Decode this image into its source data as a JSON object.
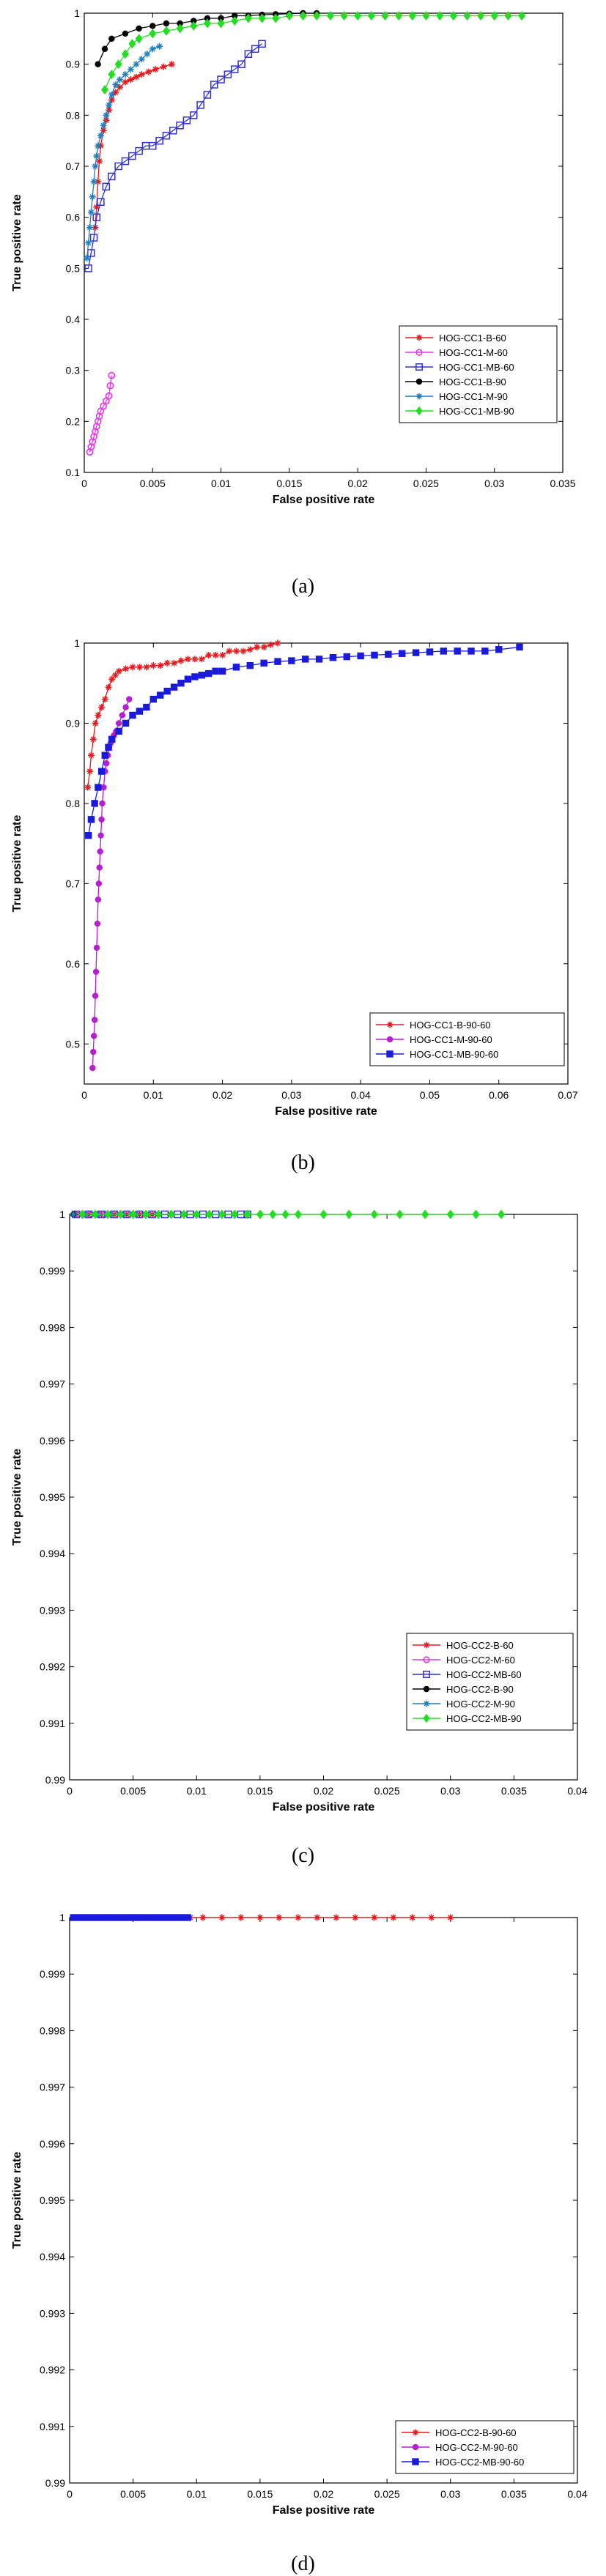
{
  "chart_data": [
    {
      "type": "line",
      "caption": "(a)",
      "xlabel": "False positive rate",
      "ylabel": "True positive rate",
      "xlim": [
        0,
        0.035
      ],
      "ylim": [
        0.1,
        1
      ],
      "xticks": [
        "0",
        "0.005",
        "0.01",
        "0.015",
        "0.02",
        "0.025",
        "0.03",
        "0.035"
      ],
      "yticks": [
        "0.1",
        "0.2",
        "0.3",
        "0.4",
        "0.5",
        "0.6",
        "0.7",
        "0.8",
        "0.9",
        "1"
      ],
      "legend_position": "lower-right",
      "series": [
        {
          "name": "HOG-CC1-B-60",
          "color": "#e8191c",
          "marker": "star",
          "x": [
            0.0008,
            0.0009,
            0.001,
            0.0011,
            0.0012,
            0.0014,
            0.0016,
            0.0018,
            0.002,
            0.0023,
            0.0026,
            0.003,
            0.0034,
            0.0038,
            0.0042,
            0.0047,
            0.0052,
            0.0058,
            0.0064
          ],
          "y": [
            0.58,
            0.62,
            0.67,
            0.71,
            0.74,
            0.77,
            0.79,
            0.81,
            0.83,
            0.845,
            0.855,
            0.865,
            0.87,
            0.875,
            0.88,
            0.885,
            0.89,
            0.895,
            0.9
          ]
        },
        {
          "name": "HOG-CC1-M-60",
          "color": "#e633e6",
          "marker": "circle-open",
          "x": [
            0.0004,
            0.0005,
            0.0006,
            0.0007,
            0.0008,
            0.0009,
            0.001,
            0.0011,
            0.0012,
            0.0014,
            0.0016,
            0.0018,
            0.0019,
            0.002
          ],
          "y": [
            0.14,
            0.15,
            0.16,
            0.17,
            0.18,
            0.19,
            0.2,
            0.21,
            0.22,
            0.23,
            0.24,
            0.25,
            0.27,
            0.29
          ]
        },
        {
          "name": "HOG-CC1-MB-60",
          "color": "#3333cc",
          "marker": "square-open",
          "x": [
            0.0003,
            0.0005,
            0.0007,
            0.0009,
            0.0012,
            0.0016,
            0.002,
            0.0025,
            0.003,
            0.0035,
            0.004,
            0.0045,
            0.005,
            0.0055,
            0.006,
            0.0065,
            0.007,
            0.0075,
            0.008,
            0.0085,
            0.009,
            0.0095,
            0.01,
            0.0105,
            0.011,
            0.0115,
            0.012,
            0.0125,
            0.013
          ],
          "y": [
            0.5,
            0.53,
            0.56,
            0.6,
            0.63,
            0.66,
            0.68,
            0.7,
            0.71,
            0.72,
            0.73,
            0.74,
            0.74,
            0.75,
            0.76,
            0.77,
            0.78,
            0.79,
            0.8,
            0.82,
            0.84,
            0.86,
            0.87,
            0.88,
            0.89,
            0.9,
            0.92,
            0.93,
            0.94
          ]
        },
        {
          "name": "HOG-CC1-B-90",
          "color": "#000000",
          "marker": "dot",
          "x": [
            0.001,
            0.0015,
            0.002,
            0.003,
            0.004,
            0.005,
            0.006,
            0.007,
            0.008,
            0.009,
            0.01,
            0.011,
            0.012,
            0.013,
            0.014,
            0.015,
            0.016,
            0.017
          ],
          "y": [
            0.9,
            0.93,
            0.95,
            0.96,
            0.97,
            0.975,
            0.98,
            0.98,
            0.985,
            0.99,
            0.99,
            0.995,
            0.995,
            0.997,
            0.998,
            0.999,
            1,
            1
          ]
        },
        {
          "name": "HOG-CC1-M-90",
          "color": "#1f7fbf",
          "marker": "star",
          "x": [
            0.0002,
            0.0003,
            0.0004,
            0.0005,
            0.0006,
            0.0007,
            0.0008,
            0.0009,
            0.001,
            0.0012,
            0.0014,
            0.0016,
            0.0018,
            0.002,
            0.0023,
            0.0026,
            0.003,
            0.0034,
            0.0038,
            0.0042,
            0.0046,
            0.005,
            0.0055
          ],
          "y": [
            0.52,
            0.55,
            0.58,
            0.61,
            0.64,
            0.67,
            0.7,
            0.72,
            0.74,
            0.76,
            0.78,
            0.8,
            0.82,
            0.84,
            0.86,
            0.87,
            0.88,
            0.89,
            0.9,
            0.91,
            0.92,
            0.93,
            0.935
          ]
        },
        {
          "name": "HOG-CC1-MB-90",
          "color": "#22dd22",
          "marker": "diamond",
          "x": [
            0.0015,
            0.002,
            0.0025,
            0.003,
            0.0035,
            0.004,
            0.005,
            0.006,
            0.007,
            0.008,
            0.009,
            0.01,
            0.011,
            0.012,
            0.013,
            0.014,
            0.015,
            0.016,
            0.017,
            0.018,
            0.019,
            0.02,
            0.021,
            0.022,
            0.023,
            0.024,
            0.025,
            0.026,
            0.027,
            0.028,
            0.029,
            0.03,
            0.031,
            0.032
          ],
          "y": [
            0.85,
            0.88,
            0.9,
            0.92,
            0.94,
            0.95,
            0.96,
            0.965,
            0.97,
            0.975,
            0.98,
            0.98,
            0.985,
            0.99,
            0.99,
            0.99,
            0.995,
            0.995,
            0.995,
            0.995,
            0.995,
            0.995,
            0.995,
            0.995,
            0.995,
            0.995,
            0.995,
            0.995,
            0.995,
            0.995,
            0.995,
            0.995,
            0.995,
            0.995
          ]
        }
      ]
    },
    {
      "type": "line",
      "caption": "(b)",
      "xlabel": "False positive rate",
      "ylabel": "True positive rate",
      "xlim": [
        0,
        0.07
      ],
      "ylim": [
        0.45,
        1
      ],
      "xticks": [
        "0",
        "0.01",
        "0.02",
        "0.03",
        "0.04",
        "0.05",
        "0.06",
        "0.07"
      ],
      "yticks": [
        "0.5",
        "0.6",
        "0.7",
        "0.8",
        "0.9",
        "1"
      ],
      "legend_position": "lower-right",
      "series": [
        {
          "name": "HOG-CC1-B-90-60",
          "color": "#e8191c",
          "marker": "star",
          "x": [
            0.0005,
            0.0008,
            0.001,
            0.0013,
            0.0016,
            0.002,
            0.0025,
            0.003,
            0.0035,
            0.004,
            0.0045,
            0.005,
            0.006,
            0.007,
            0.008,
            0.009,
            0.01,
            0.011,
            0.012,
            0.013,
            0.014,
            0.015,
            0.016,
            0.017,
            0.018,
            0.019,
            0.02,
            0.021,
            0.022,
            0.023,
            0.024,
            0.025,
            0.026,
            0.027,
            0.028
          ],
          "y": [
            0.82,
            0.84,
            0.86,
            0.88,
            0.9,
            0.91,
            0.92,
            0.93,
            0.945,
            0.955,
            0.96,
            0.965,
            0.968,
            0.97,
            0.97,
            0.97,
            0.972,
            0.972,
            0.975,
            0.975,
            0.978,
            0.98,
            0.98,
            0.98,
            0.985,
            0.985,
            0.985,
            0.99,
            0.99,
            0.99,
            0.992,
            0.995,
            0.995,
            0.998,
            1
          ]
        },
        {
          "name": "HOG-CC1-M-90-60",
          "color": "#b61fcf",
          "marker": "dot",
          "x": [
            0.0012,
            0.0013,
            0.0014,
            0.0015,
            0.0016,
            0.0017,
            0.0018,
            0.0019,
            0.002,
            0.0021,
            0.0022,
            0.0023,
            0.0024,
            0.0025,
            0.0026,
            0.0028,
            0.003,
            0.0032,
            0.0034,
            0.0036,
            0.0038,
            0.004,
            0.0043,
            0.0046,
            0.005,
            0.0055,
            0.006,
            0.0065
          ],
          "y": [
            0.47,
            0.49,
            0.51,
            0.53,
            0.56,
            0.59,
            0.62,
            0.65,
            0.68,
            0.7,
            0.72,
            0.74,
            0.76,
            0.78,
            0.8,
            0.82,
            0.84,
            0.85,
            0.86,
            0.87,
            0.875,
            0.88,
            0.885,
            0.89,
            0.9,
            0.91,
            0.92,
            0.93
          ]
        },
        {
          "name": "HOG-CC1-MB-90-60",
          "color": "#1a1adc",
          "marker": "square",
          "x": [
            0.0006,
            0.001,
            0.0015,
            0.002,
            0.0025,
            0.003,
            0.0035,
            0.004,
            0.005,
            0.006,
            0.007,
            0.008,
            0.009,
            0.01,
            0.011,
            0.012,
            0.013,
            0.014,
            0.015,
            0.016,
            0.017,
            0.018,
            0.019,
            0.02,
            0.022,
            0.024,
            0.026,
            0.028,
            0.03,
            0.032,
            0.034,
            0.036,
            0.038,
            0.04,
            0.042,
            0.044,
            0.046,
            0.048,
            0.05,
            0.052,
            0.054,
            0.056,
            0.058,
            0.06,
            0.063
          ],
          "y": [
            0.76,
            0.78,
            0.8,
            0.82,
            0.84,
            0.86,
            0.87,
            0.88,
            0.89,
            0.9,
            0.91,
            0.915,
            0.92,
            0.93,
            0.935,
            0.94,
            0.945,
            0.95,
            0.955,
            0.958,
            0.96,
            0.962,
            0.965,
            0.965,
            0.97,
            0.972,
            0.975,
            0.977,
            0.978,
            0.98,
            0.98,
            0.982,
            0.983,
            0.984,
            0.985,
            0.986,
            0.987,
            0.988,
            0.989,
            0.99,
            0.99,
            0.99,
            0.99,
            0.992,
            0.995
          ]
        }
      ]
    },
    {
      "type": "line",
      "caption": "(c)",
      "xlabel": "False positive rate",
      "ylabel": "True positive rate",
      "xlim": [
        0,
        0.04
      ],
      "ylim": [
        0.99,
        1
      ],
      "xticks": [
        "0",
        "0.005",
        "0.01",
        "0.015",
        "0.02",
        "0.025",
        "0.03",
        "0.035",
        "0.04"
      ],
      "yticks": [
        "0.99",
        "0.991",
        "0.992",
        "0.993",
        "0.994",
        "0.995",
        "0.996",
        "0.997",
        "0.998",
        "0.999",
        "1"
      ],
      "legend_position": "lower-right",
      "series": [
        {
          "name": "HOG-CC2-B-60",
          "color": "#e8191c",
          "marker": "star",
          "x": [
            0.0005,
            0.0015,
            0.0025,
            0.0035,
            0.0045,
            0.0055,
            0.0065
          ],
          "y": [
            1,
            1,
            1,
            1,
            1,
            1,
            1
          ]
        },
        {
          "name": "HOG-CC2-M-60",
          "color": "#e633e6",
          "marker": "circle-open",
          "x": [
            0.0004,
            0.001,
            0.0016,
            0.0022,
            0.0028
          ],
          "y": [
            1,
            1,
            1,
            1,
            1
          ]
        },
        {
          "name": "HOG-CC2-MB-60",
          "color": "#3333cc",
          "marker": "square-open",
          "x": [
            0.0005,
            0.0015,
            0.0025,
            0.0035,
            0.0045,
            0.0055,
            0.0065,
            0.0075,
            0.0085,
            0.0095,
            0.0105,
            0.0115,
            0.0125,
            0.0135,
            0.014
          ],
          "y": [
            1,
            1,
            1,
            1,
            1,
            1,
            1,
            1,
            1,
            1,
            1,
            1,
            1,
            1,
            1
          ]
        },
        {
          "name": "HOG-CC2-B-90",
          "color": "#000000",
          "marker": "dot",
          "x": [
            0.0003,
            0.001,
            0.002,
            0.003,
            0.004,
            0.005,
            0.006,
            0.007,
            0.008,
            0.009,
            0.01
          ],
          "y": [
            1,
            1,
            1,
            1,
            1,
            1,
            1,
            1,
            1,
            1,
            1
          ]
        },
        {
          "name": "HOG-CC2-M-90",
          "color": "#1f7fbf",
          "marker": "star",
          "x": [
            0.0003,
            0.0012,
            0.0022,
            0.0032,
            0.0042,
            0.0052
          ],
          "y": [
            1,
            1,
            1,
            1,
            1,
            1
          ]
        },
        {
          "name": "HOG-CC2-MB-90",
          "color": "#22dd22",
          "marker": "diamond",
          "x": [
            0.001,
            0.002,
            0.003,
            0.004,
            0.005,
            0.006,
            0.007,
            0.008,
            0.009,
            0.01,
            0.011,
            0.012,
            0.013,
            0.014,
            0.015,
            0.016,
            0.017,
            0.018,
            0.02,
            0.022,
            0.024,
            0.026,
            0.028,
            0.03,
            0.032,
            0.034
          ],
          "y": [
            1,
            1,
            1,
            1,
            1,
            1,
            1,
            1,
            1,
            1,
            1,
            1,
            1,
            1,
            1,
            1,
            1,
            1,
            1,
            1,
            1,
            1,
            1,
            1,
            1,
            1
          ]
        }
      ]
    },
    {
      "type": "line",
      "caption": "(d)",
      "xlabel": "False positive rate",
      "ylabel": "True positive rate",
      "xlim": [
        0,
        0.04
      ],
      "ylim": [
        0.99,
        1
      ],
      "xticks": [
        "0",
        "0.005",
        "0.01",
        "0.015",
        "0.02",
        "0.025",
        "0.03",
        "0.035",
        "0.04"
      ],
      "yticks": [
        "0.99",
        "0.991",
        "0.992",
        "0.993",
        "0.994",
        "0.995",
        "0.996",
        "0.997",
        "0.998",
        "0.999",
        "1"
      ],
      "legend_position": "lower-right",
      "series": [
        {
          "name": "HOG-CC2-B-90-60",
          "color": "#e8191c",
          "marker": "star",
          "x": [
            0.0005,
            0.0015,
            0.0025,
            0.0035,
            0.0045,
            0.0055,
            0.0065,
            0.0075,
            0.0085,
            0.0095,
            0.0105,
            0.012,
            0.0135,
            0.015,
            0.0165,
            0.018,
            0.0195,
            0.021,
            0.0225,
            0.024,
            0.0255,
            0.027,
            0.0285,
            0.03
          ],
          "y": [
            1,
            1,
            1,
            1,
            1,
            1,
            1,
            1,
            1,
            1,
            1,
            1,
            1,
            1,
            1,
            1,
            1,
            1,
            1,
            1,
            1,
            1,
            1,
            1
          ]
        },
        {
          "name": "HOG-CC2-M-90-60",
          "color": "#b61fcf",
          "marker": "dot",
          "x": [
            0.0004,
            0.0012,
            0.002,
            0.0028,
            0.0036,
            0.0044
          ],
          "y": [
            1,
            1,
            1,
            1,
            1,
            1
          ]
        },
        {
          "name": "HOG-CC2-MB-90-60",
          "color": "#1a1adc",
          "marker": "square",
          "x": [
            0.0003,
            0.0008,
            0.0013,
            0.0018,
            0.0023,
            0.0028,
            0.0033,
            0.0038,
            0.0043,
            0.0048,
            0.0053,
            0.0058,
            0.0063,
            0.0068,
            0.0073,
            0.0078,
            0.0083,
            0.0088,
            0.0093
          ],
          "y": [
            1,
            1,
            1,
            1,
            1,
            1,
            1,
            1,
            1,
            1,
            1,
            1,
            1,
            1,
            1,
            1,
            1,
            1,
            1
          ]
        }
      ]
    }
  ]
}
